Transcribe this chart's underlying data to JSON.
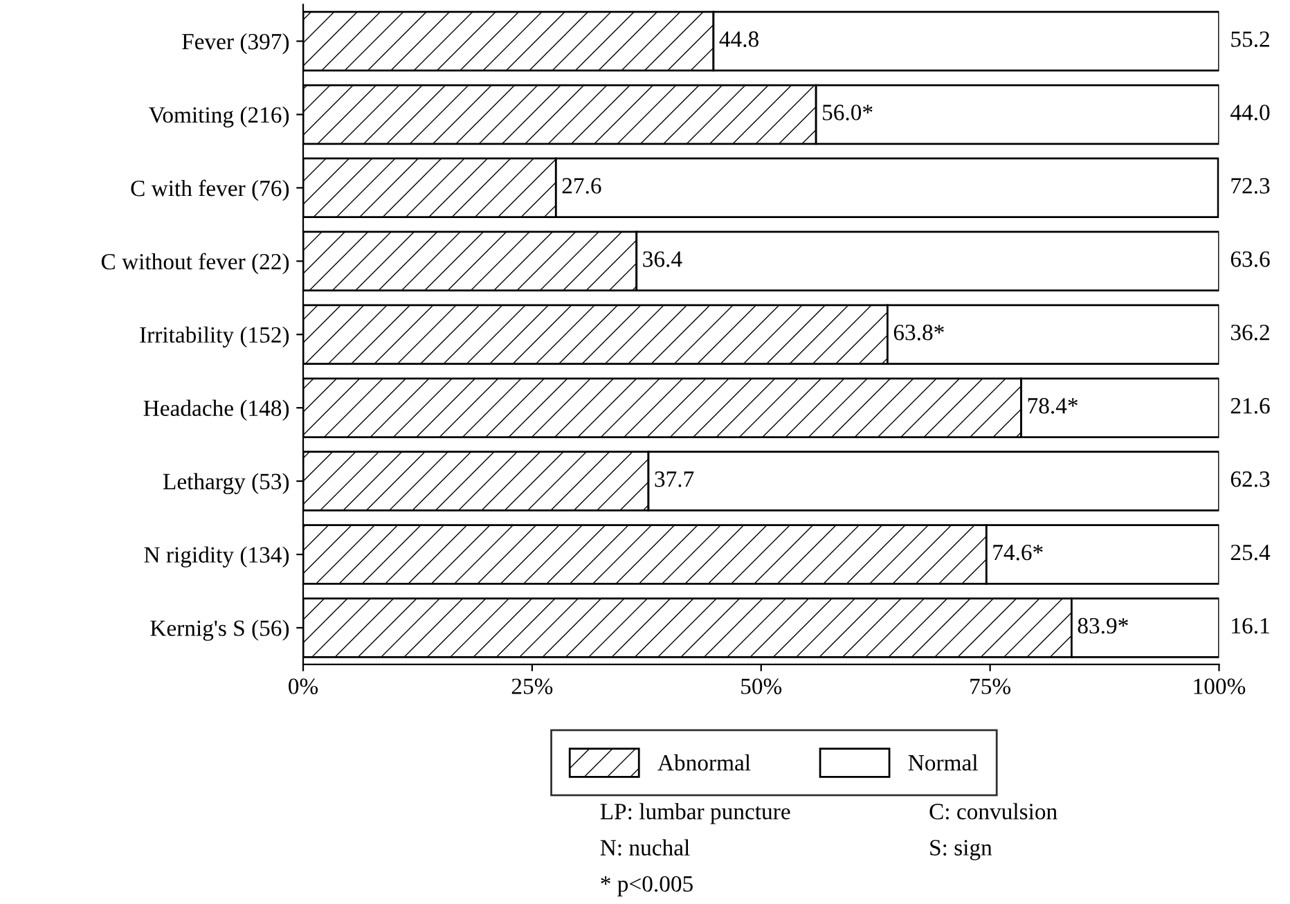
{
  "chart_data": {
    "type": "bar",
    "orientation": "horizontal",
    "stacked": true,
    "categories": [
      "Fever (397)",
      "Vomiting (216)",
      "C with fever (76)",
      "C without fever (22)",
      "Irritability (152)",
      "Headache (148)",
      "Lethargy (53)",
      "N rigidity (134)",
      "Kernig's S (56)"
    ],
    "series": [
      {
        "name": "Abnormal",
        "color": "#000000",
        "values": [
          44.8,
          56.0,
          27.6,
          36.4,
          63.8,
          78.4,
          37.7,
          74.6,
          83.9
        ],
        "value_labels": [
          "44.8",
          "56.0*",
          "27.6",
          "36.4",
          "63.8*",
          "78.4*",
          "37.7",
          "74.6*",
          "83.9*"
        ]
      },
      {
        "name": "Normal",
        "color": "#ffffff",
        "values": [
          55.2,
          44.0,
          72.3,
          63.6,
          36.2,
          21.6,
          62.3,
          25.4,
          16.1
        ],
        "value_labels": [
          "55.2",
          "44.0",
          "72.3",
          "63.6",
          "36.2",
          "21.6",
          "62.3",
          "25.4",
          "16.1"
        ]
      }
    ],
    "xlim": [
      0,
      100
    ],
    "xticks": [
      {
        "value": 0,
        "label": "0%"
      },
      {
        "value": 25,
        "label": "25%"
      },
      {
        "value": 50,
        "label": "50%"
      },
      {
        "value": 75,
        "label": "75%"
      },
      {
        "value": 100,
        "label": "100%"
      }
    ],
    "legend": "bottom",
    "grid": false,
    "annotations": [
      "LP: lumbar puncture",
      "C: convulsion",
      "N: nuchal",
      "S: sign",
      "* p<0.005"
    ]
  }
}
